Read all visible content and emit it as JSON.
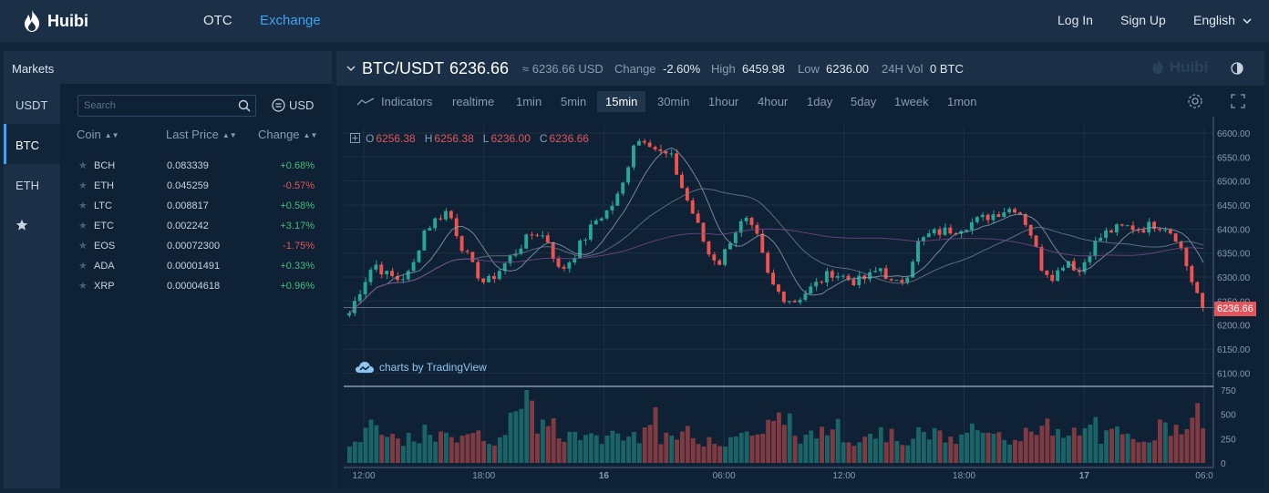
{
  "nav": {
    "brand": "Huibi",
    "links": [
      "OTC",
      "Exchange"
    ],
    "login": "Log In",
    "signup": "Sign Up",
    "language": "English"
  },
  "markets": {
    "title": "Markets",
    "tabs": [
      "USDT",
      "BTC",
      "ETH"
    ],
    "active_tab": "BTC",
    "search_placeholder": "Search",
    "currency": "USD",
    "columns": [
      "Coin",
      "Last Price",
      "Change"
    ],
    "rows": [
      {
        "coin": "BCH",
        "price": "0.083339",
        "change": "+0.68%"
      },
      {
        "coin": "ETH",
        "price": "0.045259",
        "change": "-0.57%"
      },
      {
        "coin": "LTC",
        "price": "0.008817",
        "change": "+0.58%"
      },
      {
        "coin": "ETC",
        "price": "0.002242",
        "change": "+3.17%"
      },
      {
        "coin": "EOS",
        "price": "0.00072300",
        "change": "-1.75%"
      },
      {
        "coin": "ADA",
        "price": "0.00001491",
        "change": "+0.33%"
      },
      {
        "coin": "XRP",
        "price": "0.00004618",
        "change": "+0.96%"
      }
    ]
  },
  "ticker": {
    "pair": "BTC/USDT",
    "last": "6236.66",
    "usd": "≈ 6236.66 USD",
    "change_label": "Change",
    "change": "-2.60%",
    "high_label": "High",
    "high": "6459.98",
    "low_label": "Low",
    "low": "6236.00",
    "vol_label": "24H Vol",
    "vol": "0 BTC",
    "watermark": "Huibi"
  },
  "toolbar": {
    "indicators": "Indicators",
    "intervals": [
      "realtime",
      "1min",
      "5min",
      "15min",
      "30min",
      "1hour",
      "4hour",
      "1day",
      "5day",
      "1week",
      "1mon"
    ],
    "active_interval": "15min"
  },
  "ohlc": {
    "O": "6256.38",
    "H": "6256.38",
    "L": "6236.00",
    "C": "6236.66"
  },
  "attribution": "charts by TradingView",
  "current_price_tag": "6236.66",
  "colors": {
    "up": "#26a69a",
    "down": "#ef5350",
    "accent": "#3fa3f5",
    "background": "#0f2134"
  },
  "chart_data": {
    "type": "candlestick",
    "price_ticks": [
      6600,
      6550,
      6500,
      6450,
      6400,
      6350,
      6300,
      6250,
      6200,
      6150,
      6100
    ],
    "price_tick_labels": [
      "6600.00",
      "6550.00",
      "6500.00",
      "6450.00",
      "6400.00",
      "6350.00",
      "6300.00",
      "6250.00",
      "6200.00",
      "6150.00",
      "6100.00"
    ],
    "volume_ticks": [
      "750",
      "500",
      "250",
      "0"
    ],
    "time_labels": [
      "12:00",
      "18:00",
      "16",
      "06:00",
      "12:00",
      "18:00",
      "17",
      "06:0"
    ],
    "ylim": [
      6080,
      6615
    ],
    "close_path": [
      6225,
      6280,
      6330,
      6305,
      6295,
      6310,
      6395,
      6420,
      6440,
      6370,
      6320,
      6285,
      6310,
      6340,
      6370,
      6395,
      6380,
      6310,
      6340,
      6380,
      6420,
      6440,
      6480,
      6580,
      6590,
      6560,
      6550,
      6480,
      6420,
      6350,
      6330,
      6390,
      6420,
      6380,
      6290,
      6260,
      6250,
      6270,
      6290,
      6310,
      6300,
      6290,
      6300,
      6320,
      6280,
      6300,
      6370,
      6390,
      6395,
      6400,
      6410,
      6420,
      6430,
      6440,
      6445,
      6400,
      6320,
      6300,
      6340,
      6310,
      6360,
      6390,
      6400,
      6405,
      6400,
      6410,
      6405,
      6380,
      6300,
      6240
    ],
    "volume_bars": [
      220,
      380,
      300,
      260,
      240,
      200,
      310,
      260,
      280,
      330,
      270,
      250,
      290,
      420,
      740,
      380,
      360,
      280,
      300,
      250,
      230,
      310,
      260,
      290,
      520,
      240,
      270,
      300,
      230,
      260,
      220,
      280,
      330,
      300,
      380,
      450,
      280,
      260,
      300,
      430,
      280,
      250,
      320,
      300,
      270,
      240,
      290,
      310,
      260,
      230,
      350,
      300,
      270,
      240,
      280,
      400,
      380,
      280,
      260,
      310,
      420,
      260,
      300,
      250,
      280,
      300,
      360,
      420,
      380,
      480
    ]
  }
}
